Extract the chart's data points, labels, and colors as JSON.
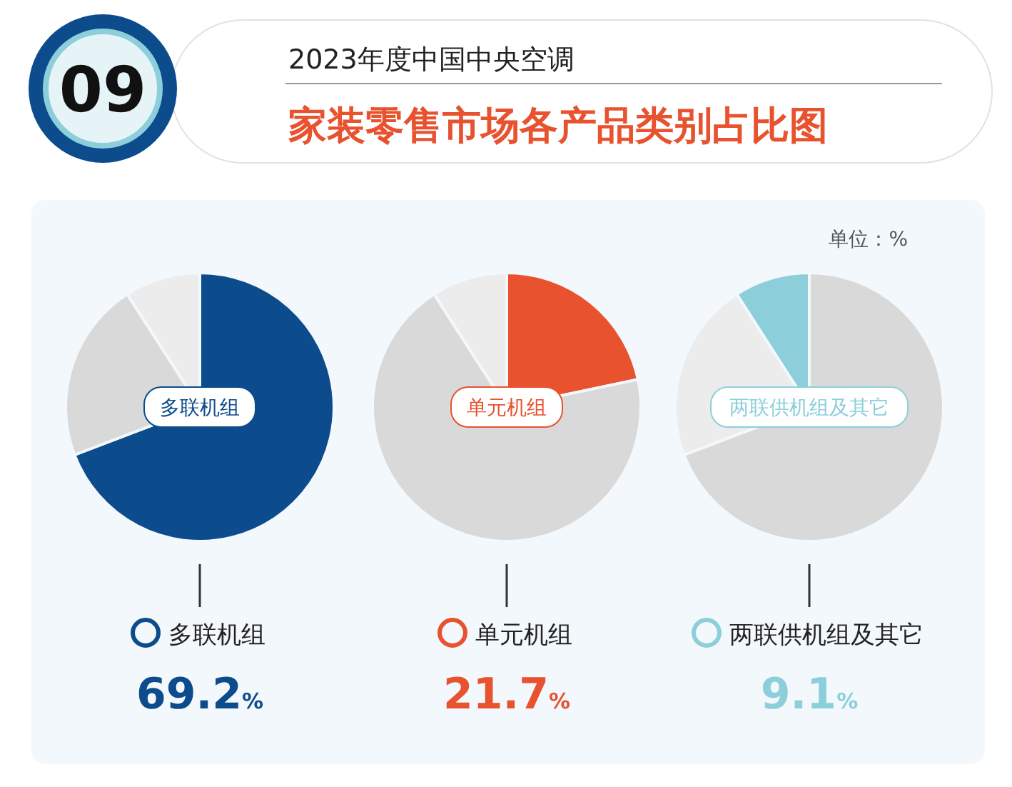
{
  "chart_data": [
    {
      "type": "other",
      "title": "2023年度中国中央空调",
      "subtitle": "家装零售市场各产品类别占比图",
      "annotations": [
        "09"
      ]
    },
    {
      "type": "pie",
      "categories": [
        "多联机组",
        null,
        null
      ],
      "values": [
        69.2,
        21.7,
        9.1
      ],
      "colors": [
        "#0d4c8c",
        "#d9d9d9",
        "#ececec"
      ],
      "value_labels": [
        "69.2%",
        null,
        null
      ],
      "legend": "bottom"
    },
    {
      "type": "pie",
      "categories": [
        "单元机组",
        null,
        null
      ],
      "values": [
        21.7,
        69.2,
        9.1
      ],
      "colors": [
        "#e8522f",
        "#d9d9d9",
        "#ececec"
      ],
      "value_labels": [
        "21.7%",
        null,
        null
      ],
      "legend": "bottom"
    },
    {
      "type": "pie",
      "annotations": [
        "单位：%"
      ],
      "categories": [
        null,
        null,
        "两联供机组及其它"
      ],
      "values": [
        69.2,
        21.7,
        9.1
      ],
      "colors": [
        "#d9d9d9",
        "#ececec",
        "#8ccfda"
      ],
      "value_labels": [
        null,
        null,
        "9.1%"
      ],
      "legend": "bottom"
    }
  ]
}
